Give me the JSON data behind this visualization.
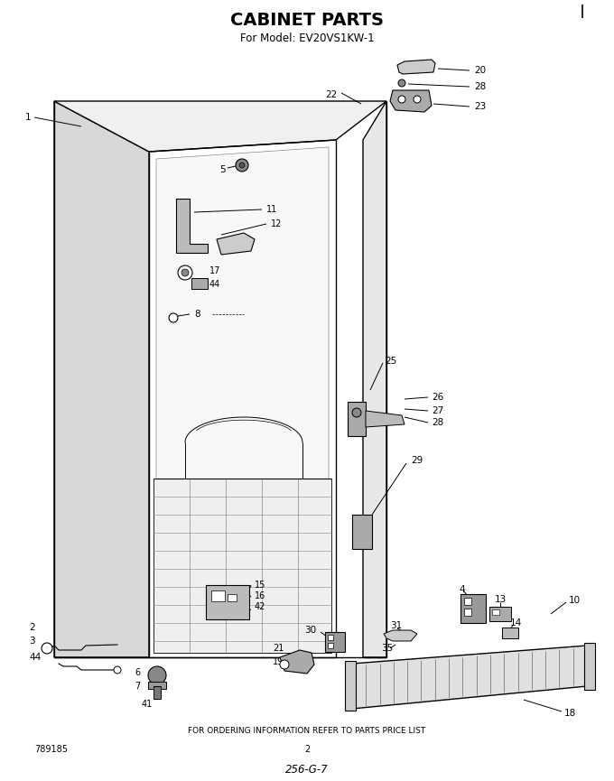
{
  "title": "CABINET PARTS",
  "subtitle": "For Model: EV20VS1KW-1",
  "footer_text": "FOR ORDERING INFORMATION REFER TO PARTS PRICE LIST",
  "bottom_left_num": "789185",
  "bottom_center_num": "2",
  "bottom_handwritten": "256-G-7",
  "bg_color": "#ffffff",
  "line_color": "#000000",
  "figsize": [
    6.8,
    8.65
  ],
  "dpi": 100
}
